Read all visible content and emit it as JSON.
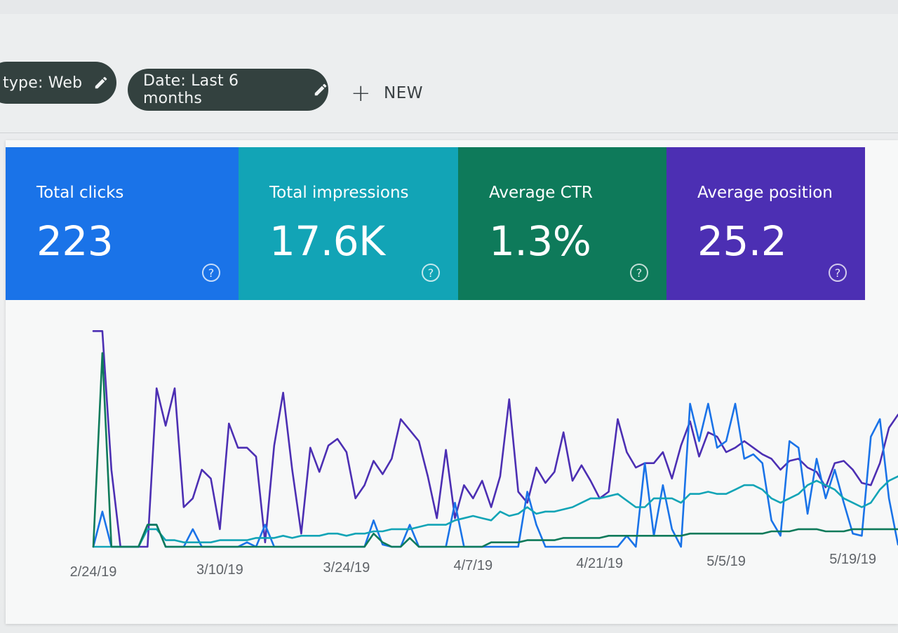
{
  "filters": {
    "type_chip": "type: Web",
    "date_chip": "Date: Last 6 months",
    "new_label": "NEW"
  },
  "metrics": [
    {
      "label": "Total clicks",
      "value": "223",
      "help": "?",
      "color": "#1a73e8"
    },
    {
      "label": "Total impressions",
      "value": "17.6K",
      "help": "?",
      "color": "#12a4b6"
    },
    {
      "label": "Average CTR",
      "value": "1.3%",
      "help": "?",
      "color": "#0e7a5a"
    },
    {
      "label": "Average position",
      "value": "25.2",
      "help": "?",
      "color": "#4c2fb3"
    }
  ],
  "icons": {
    "edit": "pencil-icon",
    "add": "plus-icon",
    "help": "help-circle-icon"
  },
  "chart_data": {
    "type": "line",
    "x_ticks": [
      "2/24/19",
      "3/10/19",
      "3/24/19",
      "4/7/19",
      "4/21/19",
      "5/5/19",
      "5/19/19"
    ],
    "x_tick_positions": [
      0,
      14,
      28,
      42,
      56,
      70,
      84
    ],
    "x_range": [
      0,
      89
    ],
    "ylim": [
      0,
      1
    ],
    "grid": false,
    "legend": "none",
    "series": [
      {
        "color": "#4c2fb3",
        "values": [
          0.98,
          0.98,
          0.35,
          0.0,
          0.0,
          0.0,
          0.0,
          0.72,
          0.55,
          0.72,
          0.18,
          0.22,
          0.35,
          0.31,
          0.08,
          0.56,
          0.45,
          0.45,
          0.41,
          0.02,
          0.46,
          0.7,
          0.35,
          0.06,
          0.45,
          0.34,
          0.46,
          0.49,
          0.43,
          0.22,
          0.28,
          0.39,
          0.33,
          0.4,
          0.58,
          0.53,
          0.48,
          0.32,
          0.13,
          0.44,
          0.13,
          0.28,
          0.22,
          0.3,
          0.18,
          0.32,
          0.67,
          0.25,
          0.2,
          0.36,
          0.29,
          0.34,
          0.52,
          0.3,
          0.37,
          0.3,
          0.22,
          0.25,
          0.58,
          0.43,
          0.36,
          0.38,
          0.38,
          0.43,
          0.31,
          0.46,
          0.57,
          0.41,
          0.52,
          0.5,
          0.43,
          0.45,
          0.48,
          0.45,
          0.42,
          0.4,
          0.35,
          0.39,
          0.4,
          0.36,
          0.34,
          0.27,
          0.38,
          0.39,
          0.35,
          0.29,
          0.28,
          0.38,
          0.54,
          0.6
        ]
      },
      {
        "color": "#1a73e8",
        "values": [
          0.0,
          0.16,
          0.0,
          0.0,
          0.0,
          0.0,
          0.1,
          0.1,
          0.0,
          0.0,
          0.0,
          0.08,
          0.0,
          0.0,
          0.0,
          0.0,
          0.0,
          0.02,
          0.0,
          0.1,
          0.0,
          0.0,
          0.0,
          0.0,
          0.0,
          0.0,
          0.0,
          0.0,
          0.0,
          0.0,
          0.0,
          0.12,
          0.01,
          0.0,
          0.0,
          0.1,
          0.0,
          0.0,
          0.0,
          0.0,
          0.2,
          0.0,
          0.0,
          0.0,
          0.0,
          0.0,
          0.0,
          0.0,
          0.25,
          0.1,
          0.0,
          0.0,
          0.0,
          0.0,
          0.0,
          0.0,
          0.0,
          0.0,
          0.0,
          0.05,
          0.0,
          0.38,
          0.05,
          0.28,
          0.08,
          0.0,
          0.65,
          0.48,
          0.65,
          0.45,
          0.48,
          0.65,
          0.4,
          0.42,
          0.38,
          0.12,
          0.05,
          0.48,
          0.45,
          0.15,
          0.4,
          0.22,
          0.35,
          0.2,
          0.06,
          0.05,
          0.5,
          0.58,
          0.22,
          0.01
        ]
      },
      {
        "color": "#12a4b6",
        "values": [
          0.0,
          0.0,
          0.0,
          0.0,
          0.0,
          0.0,
          0.08,
          0.08,
          0.03,
          0.03,
          0.02,
          0.02,
          0.02,
          0.02,
          0.03,
          0.03,
          0.03,
          0.03,
          0.04,
          0.04,
          0.04,
          0.05,
          0.04,
          0.05,
          0.05,
          0.05,
          0.06,
          0.06,
          0.05,
          0.06,
          0.06,
          0.07,
          0.07,
          0.08,
          0.08,
          0.08,
          0.09,
          0.1,
          0.1,
          0.1,
          0.12,
          0.13,
          0.14,
          0.13,
          0.12,
          0.16,
          0.14,
          0.15,
          0.18,
          0.15,
          0.16,
          0.16,
          0.17,
          0.18,
          0.2,
          0.22,
          0.22,
          0.23,
          0.24,
          0.21,
          0.18,
          0.18,
          0.22,
          0.22,
          0.22,
          0.2,
          0.24,
          0.24,
          0.25,
          0.24,
          0.24,
          0.26,
          0.28,
          0.28,
          0.26,
          0.22,
          0.2,
          0.22,
          0.24,
          0.28,
          0.3,
          0.28,
          0.26,
          0.22,
          0.2,
          0.18,
          0.2,
          0.26,
          0.3,
          0.32
        ]
      },
      {
        "color": "#0e7a5a",
        "values": [
          0.0,
          0.88,
          0.0,
          0.0,
          0.0,
          0.0,
          0.1,
          0.1,
          0.0,
          0.0,
          0.0,
          0.0,
          0.0,
          0.0,
          0.0,
          0.0,
          0.0,
          0.0,
          0.0,
          0.0,
          0.0,
          0.0,
          0.0,
          0.0,
          0.0,
          0.0,
          0.0,
          0.0,
          0.0,
          0.0,
          0.0,
          0.06,
          0.02,
          0.0,
          0.0,
          0.04,
          0.0,
          0.0,
          0.0,
          0.0,
          0.0,
          0.0,
          0.0,
          0.0,
          0.02,
          0.02,
          0.02,
          0.02,
          0.03,
          0.03,
          0.03,
          0.03,
          0.04,
          0.04,
          0.04,
          0.04,
          0.04,
          0.05,
          0.05,
          0.05,
          0.05,
          0.05,
          0.05,
          0.05,
          0.05,
          0.05,
          0.06,
          0.06,
          0.06,
          0.06,
          0.06,
          0.06,
          0.06,
          0.06,
          0.06,
          0.07,
          0.07,
          0.07,
          0.08,
          0.08,
          0.08,
          0.07,
          0.07,
          0.07,
          0.08,
          0.08,
          0.08,
          0.08,
          0.08,
          0.08
        ]
      }
    ]
  }
}
